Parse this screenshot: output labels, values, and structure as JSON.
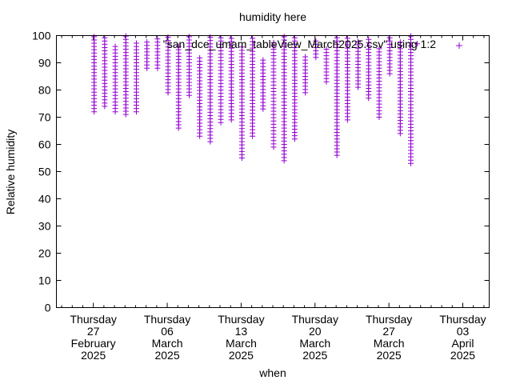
{
  "chart_data": {
    "type": "scatter",
    "title": "humidity here",
    "xlabel": "when",
    "ylabel": "Relative humidity",
    "ylim": [
      0,
      100
    ],
    "yticks": [
      0,
      10,
      20,
      30,
      40,
      50,
      60,
      70,
      80,
      90,
      100
    ],
    "xlim_day": [
      -3.5,
      37.5
    ],
    "xticks": [
      {
        "day": 0,
        "lines": [
          "Thursday",
          "27",
          "February",
          "2025"
        ]
      },
      {
        "day": 7,
        "lines": [
          "Thursday",
          "06",
          "March",
          "2025"
        ]
      },
      {
        "day": 14,
        "lines": [
          "Thursday",
          "13",
          "March",
          "2025"
        ]
      },
      {
        "day": 21,
        "lines": [
          "Thursday",
          "20",
          "March",
          "2025"
        ]
      },
      {
        "day": 28,
        "lines": [
          "Thursday",
          "27",
          "March",
          "2025"
        ]
      },
      {
        "day": 35,
        "lines": [
          "Thursday",
          "03",
          "April",
          "2025"
        ]
      }
    ],
    "legend": "top-right",
    "series": [
      {
        "name": "\"san_dce_umam_tableView_March2025.csv\" using 1:2",
        "color": "#9400d3",
        "marker": "plus",
        "daily_ranges": [
          {
            "day": 0,
            "min": 72,
            "max": 100
          },
          {
            "day": 1,
            "min": 74,
            "max": 100
          },
          {
            "day": 2,
            "min": 72,
            "max": 96
          },
          {
            "day": 3,
            "min": 71,
            "max": 100
          },
          {
            "day": 4,
            "min": 72,
            "max": 98
          },
          {
            "day": 5,
            "min": 88,
            "max": 98
          },
          {
            "day": 6,
            "min": 88,
            "max": 99
          },
          {
            "day": 7,
            "min": 79,
            "max": 100
          },
          {
            "day": 8,
            "min": 66,
            "max": 96
          },
          {
            "day": 9,
            "min": 78,
            "max": 100
          },
          {
            "day": 10,
            "min": 63,
            "max": 92
          },
          {
            "day": 11,
            "min": 61,
            "max": 100
          },
          {
            "day": 12,
            "min": 68,
            "max": 100
          },
          {
            "day": 13,
            "min": 69,
            "max": 100
          },
          {
            "day": 14,
            "min": 55,
            "max": 96
          },
          {
            "day": 15,
            "min": 63,
            "max": 100
          },
          {
            "day": 16,
            "min": 73,
            "max": 92
          },
          {
            "day": 17,
            "min": 59,
            "max": 98
          },
          {
            "day": 18,
            "min": 54,
            "max": 100
          },
          {
            "day": 19,
            "min": 62,
            "max": 100
          },
          {
            "day": 20,
            "min": 79,
            "max": 93
          },
          {
            "day": 21,
            "min": 92,
            "max": 99
          },
          {
            "day": 22,
            "min": 83,
            "max": 95
          },
          {
            "day": 23,
            "min": 56,
            "max": 100
          },
          {
            "day": 24,
            "min": 69,
            "max": 99
          },
          {
            "day": 25,
            "min": 81,
            "max": 98
          },
          {
            "day": 26,
            "min": 77,
            "max": 99
          },
          {
            "day": 27,
            "min": 70,
            "max": 96
          },
          {
            "day": 28,
            "min": 86,
            "max": 100
          },
          {
            "day": 29,
            "min": 64,
            "max": 98
          },
          {
            "day": 30,
            "min": 53,
            "max": 100
          },
          {
            "day": 30.6,
            "min": 97,
            "max": 97
          }
        ]
      }
    ]
  }
}
